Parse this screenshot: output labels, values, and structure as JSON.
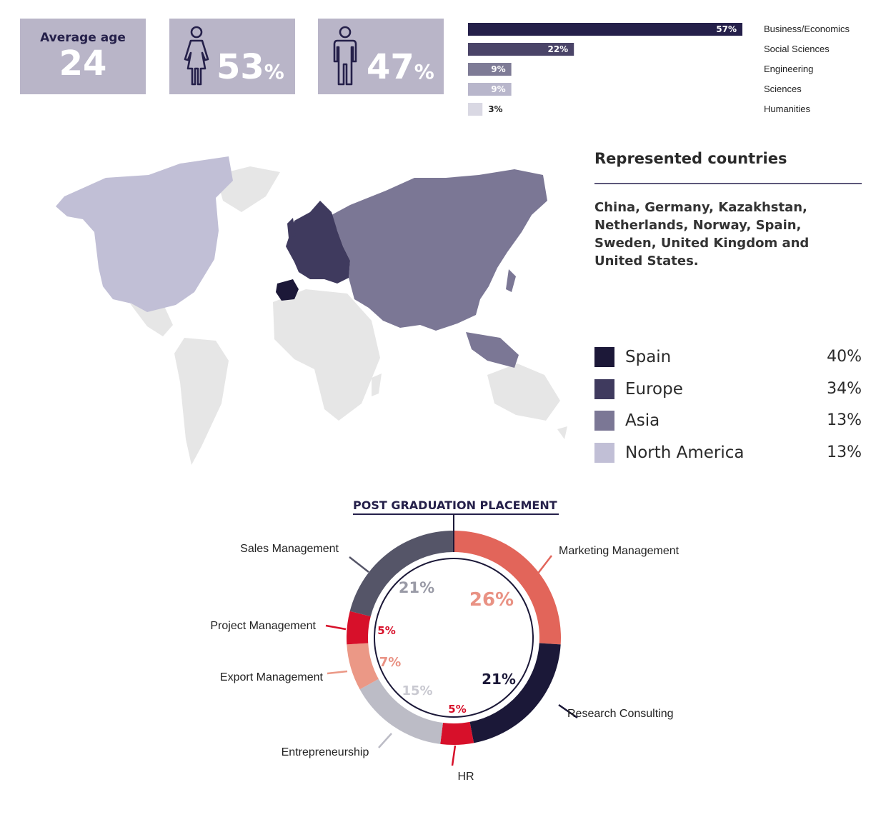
{
  "stats": {
    "average_age_label": "Average age",
    "average_age_value": "24",
    "female_percent": "53",
    "male_percent": "47",
    "percent_sign": "%"
  },
  "countries": {
    "title": "Represented countries",
    "text": "China, Germany, Kazakhstan, Netherlands, Norway, Spain, Sweden, United Kingdom and United States."
  },
  "region_legend": [
    {
      "name": "Spain",
      "value": "40%",
      "color": "#1c1838"
    },
    {
      "name": "Europe",
      "value": "34%",
      "color": "#3f3a5e"
    },
    {
      "name": "Asia",
      "value": "13%",
      "color": "#7b7795"
    },
    {
      "name": "North America",
      "value": "13%",
      "color": "#c1bfd6"
    }
  ],
  "placement": {
    "title": "POST GRADUATION PLACEMENT"
  },
  "chart_data": [
    {
      "type": "bar",
      "orientation": "horizontal",
      "categories": [
        "Business/Economics",
        "Social Sciences",
        "Engineering",
        "Sciences",
        "Humanities"
      ],
      "values": [
        57,
        22,
        9,
        9,
        3
      ],
      "value_labels": [
        "57%",
        "22%",
        "9%",
        "9%",
        "3%"
      ],
      "colors": [
        "#25204a",
        "#4a4468",
        "#7e7b96",
        "#b8b6cb",
        "#d9d8e3"
      ],
      "xlim": [
        0,
        57
      ]
    },
    {
      "type": "pie",
      "style": "donut",
      "categories": [
        "Marketing Management",
        "Research Consulting",
        "HR",
        "Entrepreneurship",
        "Export Management",
        "Project Management",
        "Sales Management"
      ],
      "values": [
        26,
        21,
        5,
        15,
        7,
        5,
        21
      ],
      "value_labels": [
        "26%",
        "21%",
        "5%",
        "15%",
        "7%",
        "5%",
        "21%"
      ],
      "colors": [
        "#e2655a",
        "#1b1838",
        "#d7102a",
        "#bcbcc6",
        "#eb9886",
        "#d7102a",
        "#555568"
      ],
      "label_colors": [
        "#e99284",
        "#1b1838",
        "#d7102a",
        "#c9c9d1",
        "#e99284",
        "#d7102a",
        "#999aa6"
      ]
    }
  ]
}
